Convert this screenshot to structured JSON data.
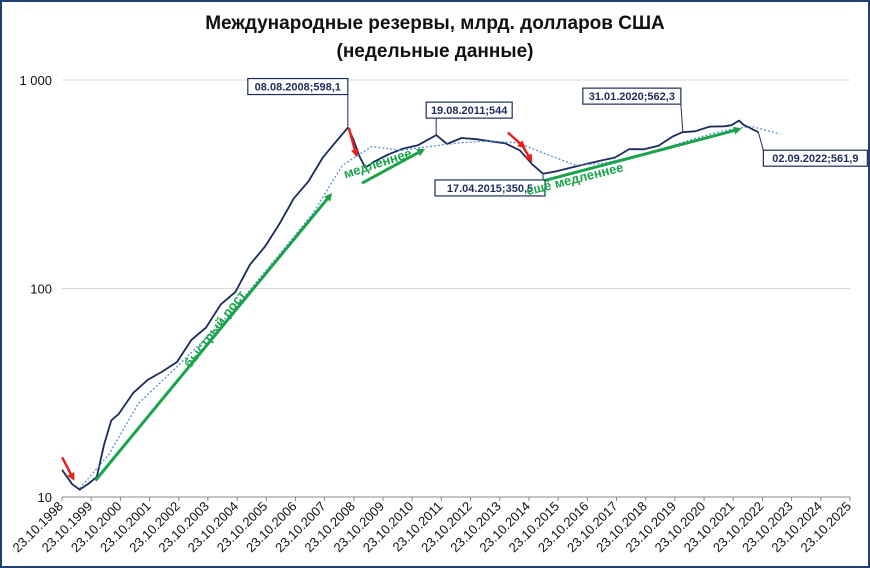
{
  "chart_data": {
    "type": "line",
    "title": "Международные резервы, млрд. долларов США",
    "subtitle": "(недельные данные)",
    "xlabel": "",
    "ylabel": "",
    "y_scale": "log",
    "ylim": [
      10,
      1000
    ],
    "y_ticks": [
      {
        "value": 10,
        "label": "10"
      },
      {
        "value": 100,
        "label": "100"
      },
      {
        "value": 1000,
        "label": "1 000"
      }
    ],
    "x_tick_labels": [
      "23.10.1998",
      "23.10.1999",
      "23.10.2000",
      "23.10.2001",
      "23.10.2002",
      "23.10.2003",
      "23.10.2004",
      "23.10.2005",
      "23.10.2006",
      "23.10.2007",
      "23.10.2008",
      "23.10.2009",
      "23.10.2010",
      "23.10.2011",
      "23.10.2012",
      "23.10.2013",
      "23.10.2014",
      "23.10.2015",
      "23.10.2016",
      "23.10.2017",
      "23.10.2018",
      "23.10.2019",
      "23.10.2020",
      "23.10.2021",
      "23.10.2022",
      "23.10.2023",
      "23.10.2024",
      "23.10.2025"
    ],
    "grid": {
      "horizontal": true,
      "vertical": false
    },
    "series": [
      {
        "color": "#1a2a5e",
        "style": "solid",
        "x": [
          "1998-10-23",
          "1999-03-01",
          "1999-06-01",
          "1999-10-01",
          "2000-01-01",
          "2000-04-01",
          "2000-07-01",
          "2000-10-01",
          "2001-04-01",
          "2001-10-01",
          "2002-04-01",
          "2002-10-01",
          "2003-04-01",
          "2003-10-01",
          "2004-04-01",
          "2004-10-01",
          "2005-04-01",
          "2005-10-01",
          "2006-04-01",
          "2006-10-01",
          "2007-04-01",
          "2007-10-01",
          "2008-03-01",
          "2008-08-08",
          "2008-10-15",
          "2009-01-01",
          "2009-03-15",
          "2009-07-01",
          "2010-01-01",
          "2010-07-01",
          "2011-01-01",
          "2011-08-19",
          "2012-01-01",
          "2012-07-01",
          "2013-01-01",
          "2013-07-01",
          "2014-01-01",
          "2014-07-01",
          "2014-12-01",
          "2015-04-17",
          "2015-10-01",
          "2016-04-01",
          "2016-10-01",
          "2017-04-01",
          "2017-10-01",
          "2018-04-01",
          "2018-10-01",
          "2019-04-01",
          "2019-10-01",
          "2020-01-31",
          "2020-07-01",
          "2021-01-01",
          "2021-07-01",
          "2021-10-01",
          "2022-01-01",
          "2022-03-01",
          "2022-09-02"
        ],
        "values": [
          13.5,
          11.5,
          11.0,
          11.5,
          12.5,
          18,
          23,
          25,
          32,
          36,
          40,
          45,
          56,
          65,
          85,
          95,
          130,
          160,
          200,
          270,
          330,
          420,
          500,
          598.1,
          515,
          430,
          385,
          400,
          440,
          475,
          480,
          544,
          500,
          520,
          520,
          515,
          490,
          460,
          400,
          350.5,
          365,
          385,
          390,
          410,
          430,
          460,
          465,
          490,
          530,
          562.3,
          575,
          590,
          600,
          615,
          630,
          610,
          561.9
        ]
      },
      {
        "color": "#5b8fd4",
        "style": "dotted",
        "x": [
          "1999-06-01",
          "2000-06-01",
          "2001-06-01",
          "2002-06-01",
          "2003-06-01",
          "2004-06-01",
          "2005-06-01",
          "2006-06-01",
          "2007-06-01",
          "2008-06-01",
          "2009-06-01",
          "2010-06-01",
          "2011-06-01",
          "2012-06-01",
          "2013-06-01",
          "2014-06-01",
          "2015-06-01",
          "2016-06-01",
          "2017-06-01",
          "2018-06-01",
          "2019-06-01",
          "2020-06-01",
          "2021-06-01",
          "2022-06-01",
          "2023-06-01"
        ],
        "values": [
          11,
          16,
          28,
          38,
          52,
          72,
          105,
          155,
          230,
          390,
          480,
          460,
          480,
          500,
          510,
          500,
          440,
          390,
          400,
          430,
          470,
          520,
          570,
          600,
          550
        ]
      }
    ],
    "annotations": [
      {
        "text": "08.08.2008;598,1",
        "x": "2008-08-08",
        "value": 598.1
      },
      {
        "text": "19.08.2011;544",
        "x": "2011-08-19",
        "value": 544
      },
      {
        "text": "17.04.2015;350,5",
        "x": "2015-04-17",
        "value": 350.5
      },
      {
        "text": "31.01.2020;562,3",
        "x": "2020-01-31",
        "value": 562.3
      },
      {
        "text": "02.09.2022;561,9",
        "x": "2022-09-02",
        "value": 561.9
      }
    ],
    "trend_labels": [
      {
        "text": "быстрый рост",
        "color": "#1aa34a"
      },
      {
        "text": "медленнее",
        "color": "#1aa34a"
      },
      {
        "text": "ещё медленнее",
        "color": "#1aa34a"
      }
    ],
    "colors": {
      "main": "#1a2a5e",
      "trend": "#5b8fd4",
      "arrow_green": "#1aa34a",
      "arrow_red": "#e8221a",
      "border": "#1f3f6e"
    }
  }
}
